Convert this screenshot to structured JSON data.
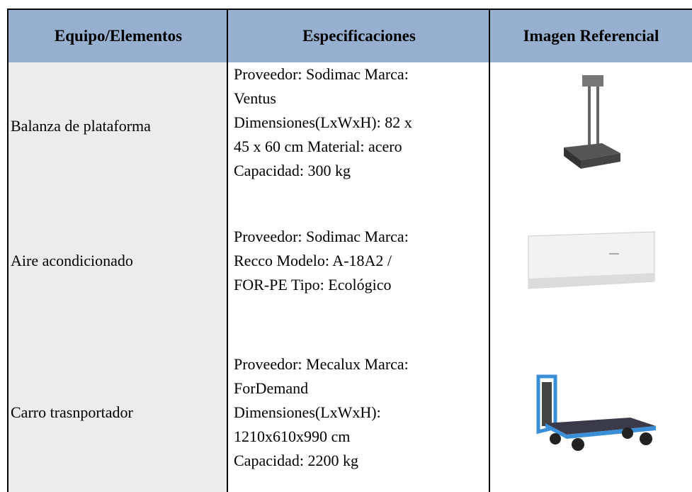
{
  "header": {
    "columns": [
      "Equipo/Elementos",
      "Especificaciones",
      "Imagen Referencial"
    ]
  },
  "rows": [
    {
      "item": "Balanza de plataforma",
      "specs": [
        "Proveedor: Sodimac  Marca:",
        "Ventus",
        "Dimensiones(LxWxH): 82 x",
        "45 x 60 cm Material: acero",
        "Capacidad: 300 kg"
      ]
    },
    {
      "item": "Aire acondicionado",
      "specs": [
        "Proveedor: Sodimac  Marca:",
        "Recco Modelo: A-18A2 /",
        "FOR-PE   Tipo: Ecológico"
      ]
    },
    {
      "item": "Carro trasnportador",
      "specs": [
        "Proveedor: Mecalux  Marca:",
        "ForDemand",
        "Dimensiones(LxWxH):",
        "1210x610x990 cm",
        "Capacidad: 2200 kg"
      ]
    }
  ]
}
